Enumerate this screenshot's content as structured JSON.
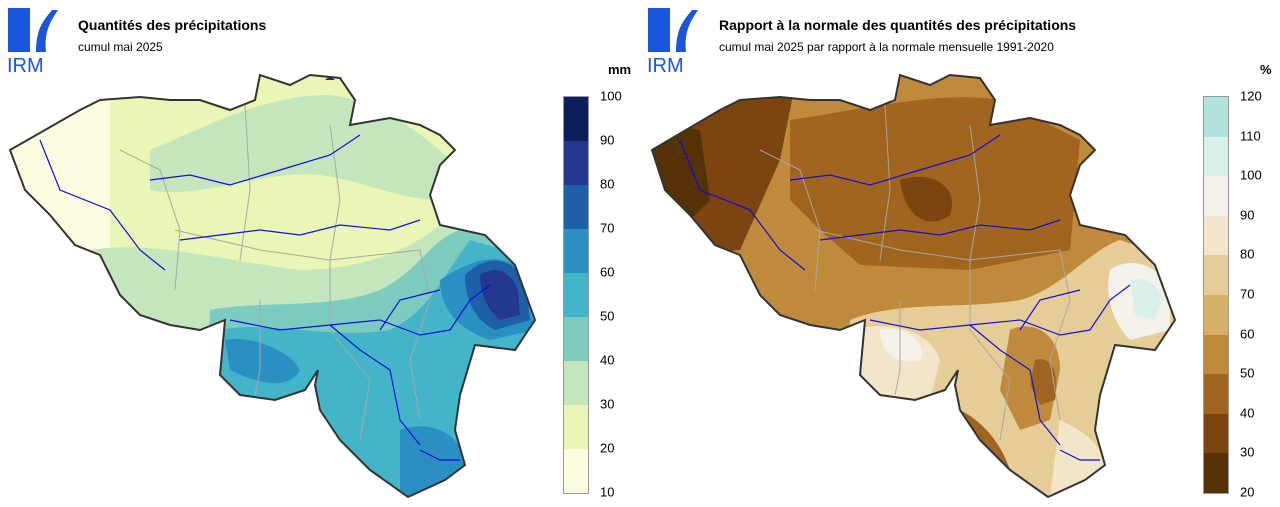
{
  "logo": {
    "text": "IRM",
    "color": "#1a56db"
  },
  "left_panel": {
    "title": "Quantités des précipitations",
    "subtitle": "cumul mai 2025",
    "unit": "mm",
    "legend_ticks": [
      "100",
      "90",
      "80",
      "70",
      "60",
      "50",
      "40",
      "30",
      "20",
      "10"
    ],
    "legend_colors": [
      "#0a1f5c",
      "#25388f",
      "#1f5fa8",
      "#2a90c3",
      "#44b4c8",
      "#7ccbbf",
      "#c3e6bc",
      "#e9f6b5",
      "#fcfde0"
    ]
  },
  "right_panel": {
    "title": "Rapport à la normale des quantités des précipitations",
    "subtitle": "cumul mai 2025 par rapport à la normale mensuelle 1991-2020",
    "unit": "%",
    "legend_ticks": [
      "120",
      "110",
      "100",
      "90",
      "80",
      "70",
      "60",
      "50",
      "40",
      "30",
      "20"
    ],
    "legend_colors": [
      "#b1e2dc",
      "#d9efea",
      "#f3f1ea",
      "#f3e5c9",
      "#e6cd98",
      "#d6af6b",
      "#c08a3d",
      "#a2651f",
      "#7b4410",
      "#563106"
    ]
  }
}
